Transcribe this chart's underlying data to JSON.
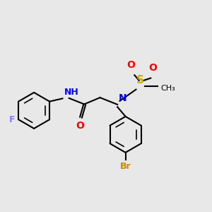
{
  "background_color": "#e8e8e8",
  "bond_color": "#000000",
  "atom_colors": {
    "F": "#8080ff",
    "N": "#0000ff",
    "O": "#ff0000",
    "S": "#ccaa00",
    "Br": "#cc8800",
    "H": "#000000",
    "C": "#000000"
  },
  "title": "",
  "figsize": [
    3.0,
    3.0
  ],
  "dpi": 100
}
